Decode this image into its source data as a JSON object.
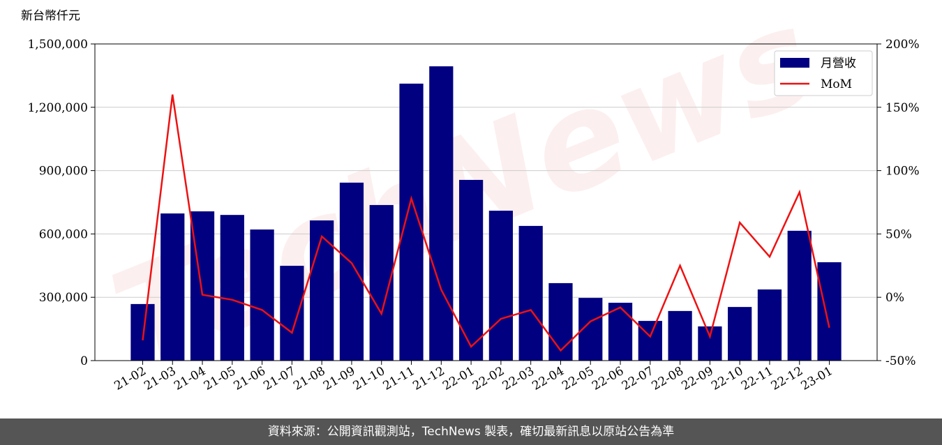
{
  "chart_data": {
    "type": "bar_line",
    "y_label": "新台幣仟元",
    "watermark": "TechNews",
    "categories": [
      "21-02",
      "21-03",
      "21-04",
      "21-05",
      "21-06",
      "21-07",
      "21-08",
      "21-09",
      "21-10",
      "21-11",
      "21-12",
      "22-01",
      "22-02",
      "22-03",
      "22-04",
      "22-05",
      "22-06",
      "22-07",
      "22-08",
      "22-09",
      "22-10",
      "22-11",
      "22-12",
      "23-01"
    ],
    "series": [
      {
        "name": "月營收",
        "type": "bar",
        "color": "#000080",
        "values": [
          268000,
          697000,
          707000,
          690000,
          621000,
          449000,
          664000,
          843000,
          737000,
          1312000,
          1394000,
          856000,
          710000,
          638000,
          367000,
          297000,
          274000,
          188000,
          235000,
          162000,
          254000,
          337000,
          615000,
          466000
        ]
      },
      {
        "name": "MoM",
        "type": "line",
        "axis": "y2",
        "color": "#ee1111",
        "values": [
          -34,
          160,
          2,
          -2,
          -10,
          -28,
          48,
          27,
          -13,
          78,
          6,
          -39,
          -17,
          -10,
          -42,
          -19,
          -8,
          -31,
          25,
          -31,
          59,
          32,
          83,
          -24
        ]
      }
    ],
    "ylim": [
      0,
      1500000
    ],
    "yticks": [
      {
        "value": 0,
        "label": "0"
      },
      {
        "value": 300000,
        "label": "300,000"
      },
      {
        "value": 600000,
        "label": "600,000"
      },
      {
        "value": 900000,
        "label": "900,000"
      },
      {
        "value": 1200000,
        "label": "1,200,000"
      },
      {
        "value": 1500000,
        "label": "1,500,000"
      }
    ],
    "y2lim": [
      -50,
      200
    ],
    "y2ticks": [
      {
        "value": -50,
        "label": "-50%"
      },
      {
        "value": 0,
        "label": "0%"
      },
      {
        "value": 50,
        "label": "50%"
      },
      {
        "value": 100,
        "label": "100%"
      },
      {
        "value": 150,
        "label": "150%"
      },
      {
        "value": 200,
        "label": "200%"
      }
    ],
    "grid": true,
    "legend": "upper right"
  },
  "footer": "資料來源：公開資訊觀測站，TechNews 製表，確切最新訊息以原站公告為準"
}
